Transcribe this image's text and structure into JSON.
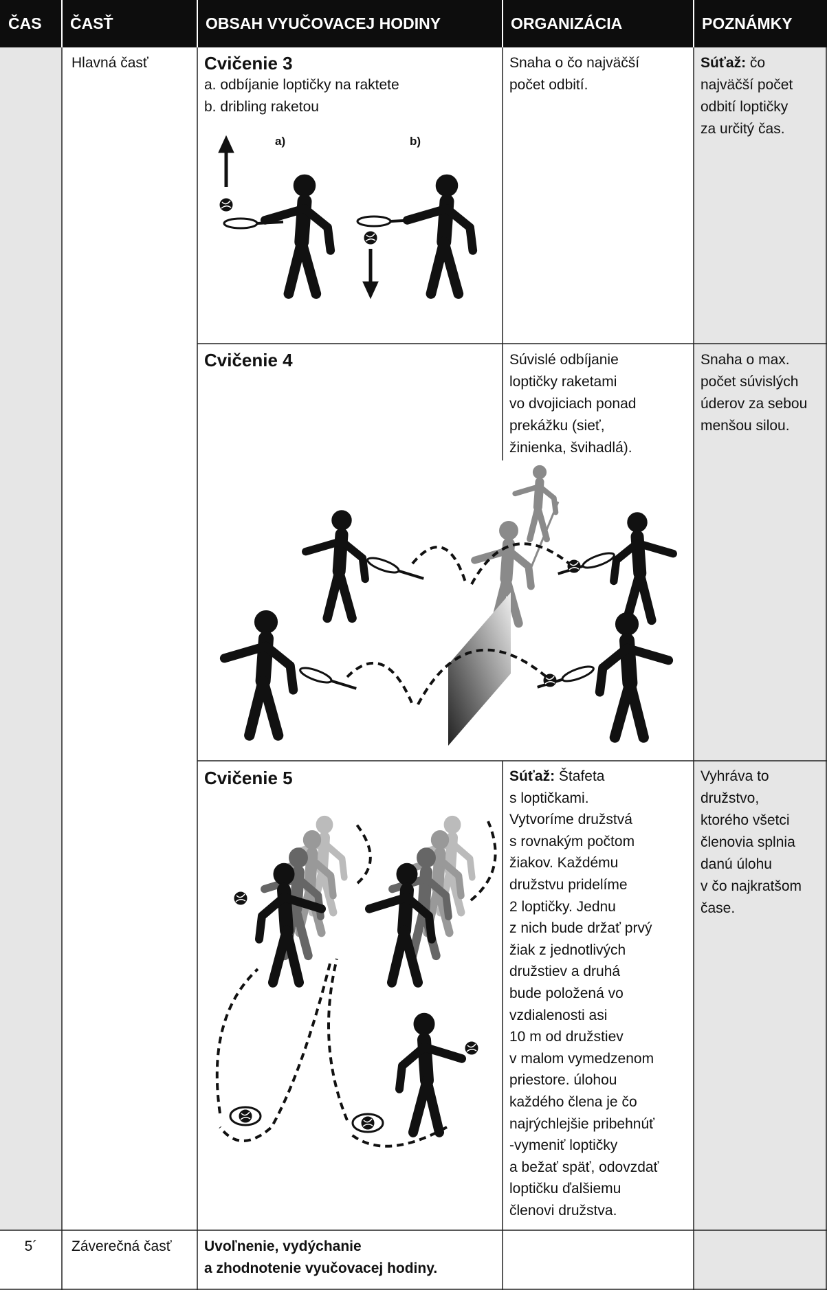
{
  "table": {
    "header": [
      "ČAS",
      "ČASŤ",
      "OBSAH VYUČOVACEJ HODINY",
      "ORGANIZÁCIA",
      "POZNÁMKY"
    ],
    "main_part": "Hlavná časť",
    "exercises": [
      {
        "title": "Cvičenie 3",
        "lines": [
          "a. odbíjanie loptičky na raktete",
          "b. dribling raketou"
        ],
        "figure_labels": [
          "a)",
          "b)"
        ],
        "organization": {
          "lines": [
            "Snaha o čo najväčší",
            "počet odbití."
          ]
        },
        "notes": {
          "label": "Súťaž:",
          "lines": [
            "čo",
            "najväčší počet",
            "odbití loptičky",
            "za určitý čas."
          ]
        }
      },
      {
        "title": "Cvičenie 4",
        "organization": {
          "lines": [
            "Súvislé odbíjanie",
            "loptičky raketami",
            "vo dvojiciach ponad",
            "prekážku (sieť,",
            "žinienka, švihadlá)."
          ]
        },
        "notes": {
          "lines": [
            "Snaha o max.",
            "počet súvislých",
            "úderov za sebou",
            "menšou silou."
          ]
        }
      },
      {
        "title": "Cvičenie 5",
        "organization": {
          "label": "Súťaž:",
          "lines": [
            "Štafeta",
            "s loptičkami.",
            "Vytvoríme družstvá",
            "s rovnakým počtom",
            "žiakov. Každému",
            "družstvu pridelíme",
            "2 loptičky. Jednu",
            "z nich bude držať prvý",
            "žiak z jednotlivých",
            "družstiev a druhá",
            "bude položená vo",
            "vzdialenosti asi",
            "10 m od družstiev",
            "v malom vymedzenom",
            "priestore. úlohou",
            "každého člena je čo",
            "najrýchlejšie pribehnúť",
            "-vymeniť loptičky",
            "a bežať späť, odovzdať",
            "loptičku ďalšiemu",
            "členovi družstva."
          ]
        },
        "notes": {
          "lines": [
            "Vyhráva to",
            "družstvo,",
            "ktorého všetci",
            "členovia splnia",
            "danú úlohu",
            "v čo najkratšom",
            "čase."
          ]
        }
      }
    ],
    "final": {
      "time": "5´",
      "part": "Záverečná časť",
      "content": [
        "Uvoľnenie, vydýchanie",
        "a zhodnotenie vyučovacej hodiny."
      ]
    }
  }
}
